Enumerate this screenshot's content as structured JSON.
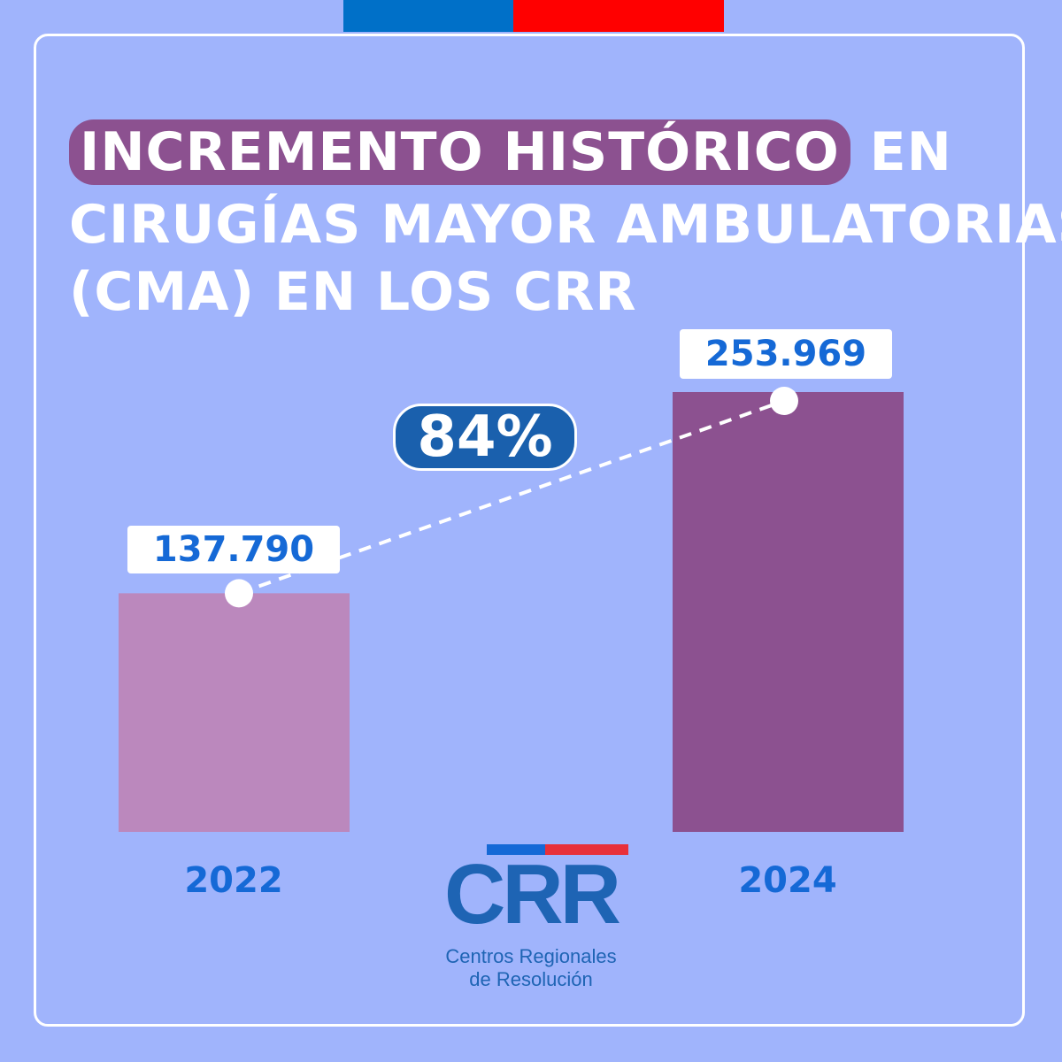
{
  "header": {
    "title_highlight": "INCREMENTO HISTÓRICO",
    "title_rest_line1": " EN",
    "title_line2": "CIRUGÍAS MAYOR AMBULATORIAS",
    "title_line3": "(CMA) EN LOS CRR"
  },
  "chart_data": {
    "type": "bar",
    "categories": [
      "2022",
      "2024"
    ],
    "values": [
      137790,
      253969
    ],
    "value_labels": [
      "137.790",
      "253.969"
    ],
    "increase_label": "84%",
    "colors": [
      "#bb88bd",
      "#8c5190"
    ]
  },
  "logo": {
    "mark": "CRR",
    "line1": "Centros Regionales",
    "line2": "de Resolución"
  },
  "colors": {
    "background": "#a0b4fc",
    "accent_blue": "#1569d6",
    "accent_purple": "#8c5190",
    "flag_blue": "#0070c8",
    "flag_red": "#ff0000"
  }
}
